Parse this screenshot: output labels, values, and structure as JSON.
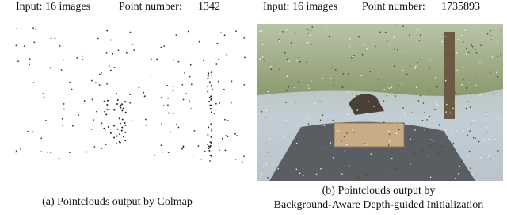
{
  "panels": [
    {
      "input": "Input: 16 images",
      "point_number_label": "Point number:",
      "point_number": 1342,
      "caption_lines": [
        "(a) Pointclouds output by Colmap"
      ]
    },
    {
      "input": "Input: 16 images",
      "point_number_label": "Point number:",
      "point_number": 1735893,
      "caption_lines": [
        "(b) Pointclouds output by",
        "Background-Aware Depth-guided Initialization"
      ]
    }
  ]
}
